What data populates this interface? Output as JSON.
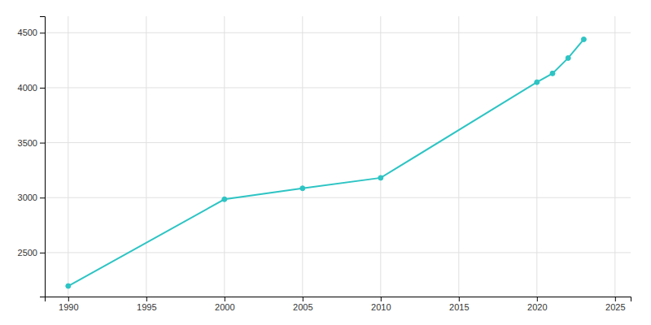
{
  "chart_data": {
    "type": "line",
    "x": [
      1990,
      2000,
      2005,
      2010,
      2020,
      2021,
      2022,
      2023
    ],
    "values": [
      2196,
      2985,
      3085,
      3180,
      4050,
      4130,
      4270,
      4440
    ],
    "color": "#2EC4C4",
    "marker": "circle",
    "xlim": [
      1988.5,
      2026
    ],
    "ylim": [
      2100,
      4650
    ],
    "xticks": [
      1990,
      1995,
      2000,
      2005,
      2010,
      2015,
      2020,
      2025
    ],
    "yticks": [
      2500,
      3000,
      3500,
      4000,
      4500
    ],
    "grid": true
  }
}
